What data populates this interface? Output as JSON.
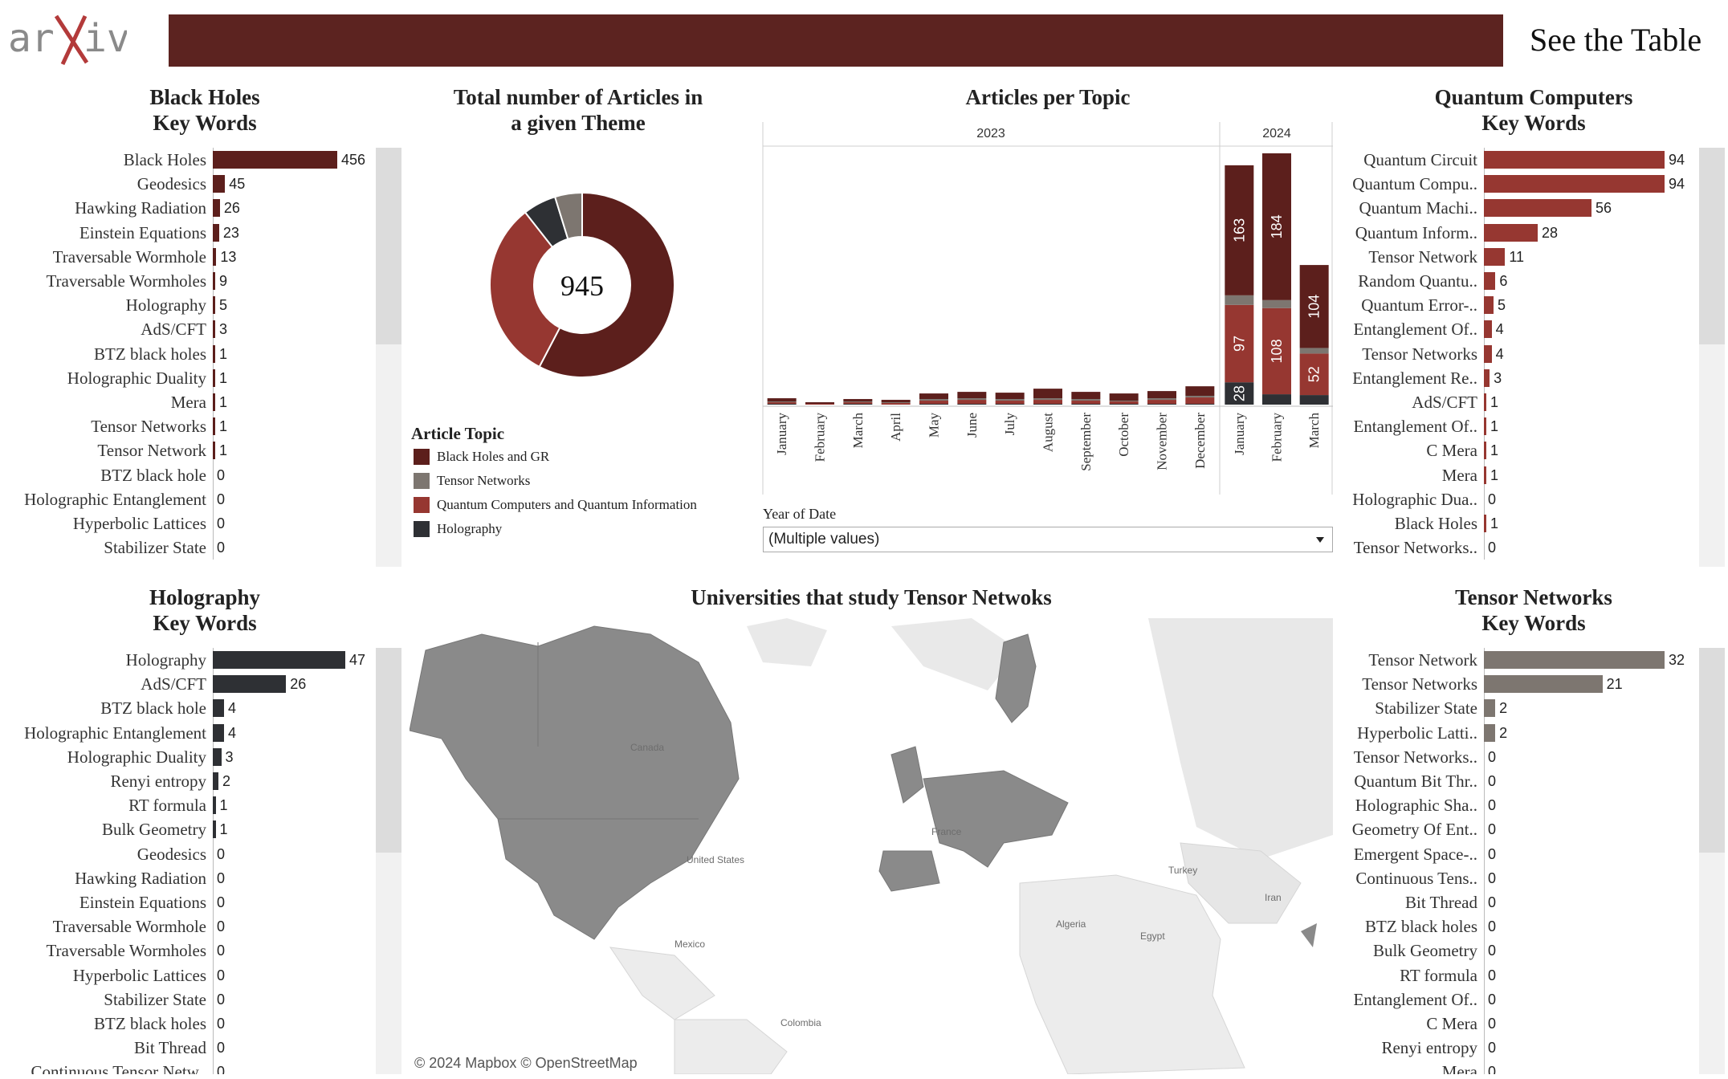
{
  "header": {
    "logo_text": "arXiv",
    "see_table": "See the Table"
  },
  "colors": {
    "black_holes": "#5c1f1c",
    "tensor_networks": "#7d7670",
    "quantum": "#963731",
    "holography": "#2e3034",
    "topbar": "#5c2320"
  },
  "black_holes_panel": {
    "title_line1": "Black Holes",
    "title_line2": "Key Words",
    "color": "#5c1f1c",
    "items": [
      {
        "label": "Black Holes",
        "value": 456
      },
      {
        "label": "Geodesics",
        "value": 45
      },
      {
        "label": "Hawking Radiation",
        "value": 26
      },
      {
        "label": "Einstein Equations",
        "value": 23
      },
      {
        "label": "Traversable Wormhole",
        "value": 13
      },
      {
        "label": "Traversable Wormholes",
        "value": 9
      },
      {
        "label": "Holography",
        "value": 5
      },
      {
        "label": "AdS/CFT",
        "value": 3
      },
      {
        "label": "BTZ black holes",
        "value": 1
      },
      {
        "label": "Holographic Duality",
        "value": 1
      },
      {
        "label": "Mera",
        "value": 1
      },
      {
        "label": "Tensor Networks",
        "value": 1
      },
      {
        "label": "Tensor Network",
        "value": 1
      },
      {
        "label": "BTZ black hole",
        "value": 0
      },
      {
        "label": "Holographic Entanglement",
        "value": 0
      },
      {
        "label": "Hyperbolic Lattices",
        "value": 0
      },
      {
        "label": "Stabilizer State",
        "value": 0
      }
    ]
  },
  "quantum_panel": {
    "title_line1": "Quantum Computers",
    "title_line2": "Key Words",
    "color": "#963731",
    "items": [
      {
        "label": "Quantum Circuit",
        "value": 94
      },
      {
        "label": "Quantum Compu..",
        "value": 94
      },
      {
        "label": "Quantum Machi..",
        "value": 56
      },
      {
        "label": "Quantum Inform..",
        "value": 28
      },
      {
        "label": "Tensor Network",
        "value": 11
      },
      {
        "label": "Random Quantu..",
        "value": 6
      },
      {
        "label": "Quantum Error-..",
        "value": 5
      },
      {
        "label": "Entanglement Of..",
        "value": 4
      },
      {
        "label": "Tensor Networks",
        "value": 4
      },
      {
        "label": "Entanglement Re..",
        "value": 3
      },
      {
        "label": "AdS/CFT",
        "value": 1
      },
      {
        "label": "Entanglement Of..",
        "value": 1
      },
      {
        "label": "C Mera",
        "value": 1
      },
      {
        "label": "Mera",
        "value": 1
      },
      {
        "label": "Holographic Dua..",
        "value": 0
      },
      {
        "label": "Black Holes",
        "value": 1
      },
      {
        "label": "Tensor Networks..",
        "value": 0
      }
    ]
  },
  "holography_panel": {
    "title_line1": "Holography",
    "title_line2": "Key Words",
    "color": "#2e3034",
    "items": [
      {
        "label": "Holography",
        "value": 47
      },
      {
        "label": "AdS/CFT",
        "value": 26
      },
      {
        "label": "BTZ black hole",
        "value": 4
      },
      {
        "label": "Holographic Entanglement",
        "value": 4
      },
      {
        "label": "Holographic Duality",
        "value": 3
      },
      {
        "label": "Renyi entropy",
        "value": 2
      },
      {
        "label": "RT formula",
        "value": 1
      },
      {
        "label": "Bulk Geometry",
        "value": 1
      },
      {
        "label": "Geodesics",
        "value": 0
      },
      {
        "label": "Hawking Radiation",
        "value": 0
      },
      {
        "label": "Einstein Equations",
        "value": 0
      },
      {
        "label": "Traversable Wormhole",
        "value": 0
      },
      {
        "label": "Traversable Wormholes",
        "value": 0
      },
      {
        "label": "Hyperbolic Lattices",
        "value": 0
      },
      {
        "label": "Stabilizer State",
        "value": 0
      },
      {
        "label": "BTZ black holes",
        "value": 0
      },
      {
        "label": "Bit Thread",
        "value": 0
      },
      {
        "label": "Continuous Tensor Netw..",
        "value": 0
      }
    ]
  },
  "tensor_panel": {
    "title_line1": "Tensor Networks",
    "title_line2": "Key Words",
    "color": "#7d7670",
    "items": [
      {
        "label": "Tensor Network",
        "value": 32
      },
      {
        "label": "Tensor Networks",
        "value": 21
      },
      {
        "label": "Stabilizer State",
        "value": 2
      },
      {
        "label": "Hyperbolic Latti..",
        "value": 2
      },
      {
        "label": "Tensor Networks..",
        "value": 0
      },
      {
        "label": "Quantum Bit Thr..",
        "value": 0
      },
      {
        "label": "Holographic Sha..",
        "value": 0
      },
      {
        "label": "Geometry Of Ent..",
        "value": 0
      },
      {
        "label": "Emergent Space-..",
        "value": 0
      },
      {
        "label": "Continuous Tens..",
        "value": 0
      },
      {
        "label": "Bit Thread",
        "value": 0
      },
      {
        "label": "BTZ black holes",
        "value": 0
      },
      {
        "label": "Bulk Geometry",
        "value": 0
      },
      {
        "label": "RT formula",
        "value": 0
      },
      {
        "label": "Entanglement Of..",
        "value": 0
      },
      {
        "label": "C Mera",
        "value": 0
      },
      {
        "label": "Renyi entropy",
        "value": 0
      },
      {
        "label": "Mera",
        "value": 0
      }
    ]
  },
  "donut": {
    "title_line1": "Total number of Articles in",
    "title_line2": "a given Theme",
    "center_label": "945"
  },
  "legend": {
    "title": "Article Topic",
    "items": [
      {
        "label": "Black Holes and GR",
        "color": "#5c1f1c"
      },
      {
        "label": "Tensor Networks",
        "color": "#7d7670"
      },
      {
        "label": "Quantum Computers and Quantum Information",
        "color": "#963731"
      },
      {
        "label": "Holography",
        "color": "#2e3034"
      }
    ]
  },
  "articles_chart": {
    "title": "Articles per Topic",
    "year_2023": "2023",
    "year_2024": "2024"
  },
  "filter": {
    "label": "Year of Date",
    "value": "(Multiple values)"
  },
  "map": {
    "title": "Universities that study Tensor Netwoks",
    "attribution": "© 2024 Mapbox  © OpenStreetMap",
    "labels": [
      "Canada",
      "United States",
      "Mexico",
      "Colombia",
      "Algeria",
      "Egypt",
      "Turkey",
      "Iran",
      "France"
    ]
  },
  "chart_data": [
    {
      "type": "bar",
      "orientation": "horizontal",
      "title": "Black Holes Key Words",
      "categories": [
        "Black Holes",
        "Geodesics",
        "Hawking Radiation",
        "Einstein Equations",
        "Traversable Wormhole",
        "Traversable Wormholes",
        "Holography",
        "AdS/CFT",
        "BTZ black holes",
        "Holographic Duality",
        "Mera",
        "Tensor Networks",
        "Tensor Network",
        "BTZ black hole",
        "Holographic Entanglement",
        "Hyperbolic Lattices",
        "Stabilizer State"
      ],
      "values": [
        456,
        45,
        26,
        23,
        13,
        9,
        5,
        3,
        1,
        1,
        1,
        1,
        1,
        0,
        0,
        0,
        0
      ]
    },
    {
      "type": "pie",
      "title": "Total number of Articles in a given Theme",
      "total": 945,
      "categories": [
        "Black Holes and GR",
        "Quantum Computers and Quantum Information",
        "Holography",
        "Tensor Networks"
      ],
      "values": [
        545,
        300,
        55,
        45
      ]
    },
    {
      "type": "bar",
      "stacked": true,
      "title": "Articles per Topic",
      "categories": [
        "January",
        "February",
        "March",
        "April",
        "May",
        "June",
        "July",
        "August",
        "September",
        "October",
        "November",
        "December",
        "January",
        "February",
        "March"
      ],
      "years": [
        "2023",
        "2023",
        "2023",
        "2023",
        "2023",
        "2023",
        "2023",
        "2023",
        "2023",
        "2023",
        "2023",
        "2023",
        "2024",
        "2024",
        "2024"
      ],
      "series": [
        {
          "name": "Holography",
          "values": [
            1,
            0,
            1,
            0,
            1,
            1,
            1,
            1,
            1,
            1,
            1,
            1,
            28,
            13,
            12
          ]
        },
        {
          "name": "Quantum Computers and Quantum Information",
          "values": [
            2,
            1,
            2,
            2,
            4,
            5,
            4,
            5,
            4,
            3,
            5,
            8,
            97,
            108,
            52
          ]
        },
        {
          "name": "Tensor Networks",
          "values": [
            1,
            0,
            1,
            1,
            2,
            2,
            2,
            2,
            2,
            1,
            2,
            2,
            12,
            10,
            7
          ]
        },
        {
          "name": "Black Holes and GR",
          "values": [
            4,
            2,
            3,
            3,
            7,
            8,
            8,
            12,
            9,
            9,
            9,
            12,
            163,
            184,
            104
          ]
        }
      ],
      "data_labels": {
        "January 2024": {
          "Holography": 28,
          "Quantum Computers and Quantum Information": 97,
          "Black Holes and GR": 163
        },
        "February 2024": {
          "Quantum Computers and Quantum Information": 108,
          "Black Holes and GR": 184
        },
        "March 2024": {
          "Quantum Computers and Quantum Information": 52,
          "Black Holes and GR": 104
        }
      }
    },
    {
      "type": "bar",
      "orientation": "horizontal",
      "title": "Quantum Computers Key Words",
      "categories": [
        "Quantum Circuit",
        "Quantum Compu..",
        "Quantum Machi..",
        "Quantum Inform..",
        "Tensor Network",
        "Random Quantu..",
        "Quantum Error-..",
        "Entanglement Of..",
        "Tensor Networks",
        "Entanglement Re..",
        "AdS/CFT",
        "Entanglement Of..",
        "C Mera",
        "Mera",
        "Holographic Dua..",
        "Black Holes",
        "Tensor Networks.."
      ],
      "values": [
        94,
        94,
        56,
        28,
        11,
        6,
        5,
        4,
        4,
        3,
        1,
        1,
        1,
        1,
        0,
        1,
        0
      ]
    },
    {
      "type": "bar",
      "orientation": "horizontal",
      "title": "Holography Key Words",
      "categories": [
        "Holography",
        "AdS/CFT",
        "BTZ black hole",
        "Holographic Entanglement",
        "Holographic Duality",
        "Renyi entropy",
        "RT formula",
        "Bulk Geometry",
        "Geodesics",
        "Hawking Radiation",
        "Einstein Equations",
        "Traversable Wormhole",
        "Traversable Wormholes",
        "Hyperbolic Lattices",
        "Stabilizer State",
        "BTZ black holes",
        "Bit Thread",
        "Continuous Tensor Netw.."
      ],
      "values": [
        47,
        26,
        4,
        4,
        3,
        2,
        1,
        1,
        0,
        0,
        0,
        0,
        0,
        0,
        0,
        0,
        0,
        0
      ]
    },
    {
      "type": "bar",
      "orientation": "horizontal",
      "title": "Tensor Networks Key Words",
      "categories": [
        "Tensor Network",
        "Tensor Networks",
        "Stabilizer State",
        "Hyperbolic Latti..",
        "Tensor Networks..",
        "Quantum Bit Thr..",
        "Holographic Sha..",
        "Geometry Of Ent..",
        "Emergent Space-..",
        "Continuous Tens..",
        "Bit Thread",
        "BTZ black holes",
        "Bulk Geometry",
        "RT formula",
        "Entanglement Of..",
        "C Mera",
        "Renyi entropy",
        "Mera"
      ],
      "values": [
        32,
        21,
        2,
        2,
        0,
        0,
        0,
        0,
        0,
        0,
        0,
        0,
        0,
        0,
        0,
        0,
        0,
        0
      ]
    }
  ]
}
